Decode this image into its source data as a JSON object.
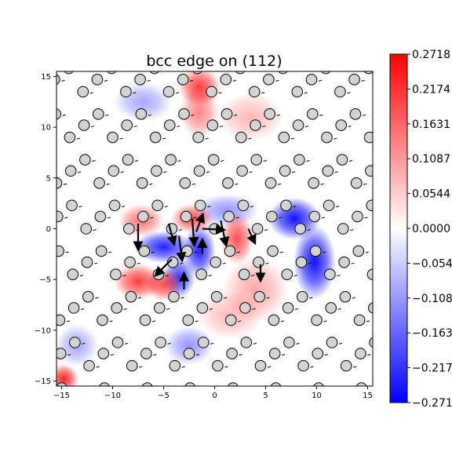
{
  "chart_data": {
    "type": "heatmap",
    "title": "bcc edge on (112)",
    "xlabel": "",
    "ylabel": "",
    "xlim": [
      -15.5,
      15.5
    ],
    "ylim": [
      -15.5,
      15.5
    ],
    "x_ticks": [
      -15,
      -10,
      -5,
      0,
      5,
      10,
      15
    ],
    "y_ticks": [
      -15,
      -10,
      -5,
      0,
      5,
      10,
      15
    ],
    "colormap": "bwr",
    "grid": false,
    "colorbar": {
      "min": -0.2718,
      "max": 0.2718,
      "tick_labels": [
        "0.2718",
        "0.2174",
        "0.1631",
        "0.1087",
        "0.0544",
        "0.0000",
        "-0.054",
        "-0.108",
        "-0.163",
        "-0.217",
        "-0.271"
      ],
      "tick_values": [
        0.2718,
        0.2174,
        0.1631,
        0.1087,
        0.0544,
        0.0,
        -0.0544,
        -0.1087,
        -0.1631,
        -0.2174,
        -0.2718
      ]
    },
    "atoms": {
      "lattice_a": [
        4.2,
        0
      ],
      "lattice_b": [
        1.3,
        4.5
      ],
      "basis": [
        [
          0,
          0
        ],
        [
          1.4,
          1.2
        ],
        [
          2.8,
          2.3
        ]
      ],
      "marker_color": "#d3d3d3"
    },
    "displacement_peaks": [
      {
        "x": 7.8,
        "y": 1.0,
        "value": -0.27,
        "sx": 1.6,
        "sy": 1.3
      },
      {
        "x": 9.8,
        "y": -3.3,
        "value": -0.27,
        "sx": 1.3,
        "sy": 2.3
      },
      {
        "x": -5.0,
        "y": -1.8,
        "value": -0.25,
        "sx": 1.8,
        "sy": 1.0
      },
      {
        "x": -1.5,
        "y": -2.2,
        "value": -0.25,
        "sx": 1.0,
        "sy": 1.6
      },
      {
        "x": -3.5,
        "y": -4.8,
        "value": -0.22,
        "sx": 1.0,
        "sy": 1.3
      },
      {
        "x": 1.2,
        "y": 1.8,
        "value": -0.12,
        "sx": 2.0,
        "sy": 1.0
      },
      {
        "x": -2.5,
        "y": -11.5,
        "value": -0.12,
        "sx": 1.5,
        "sy": 1.2
      },
      {
        "x": -13.5,
        "y": -11.5,
        "value": -0.1,
        "sx": 1.3,
        "sy": 1.3
      },
      {
        "x": -7.0,
        "y": 12.5,
        "value": -0.1,
        "sx": 1.8,
        "sy": 1.2
      },
      {
        "x": -1.5,
        "y": 14.0,
        "value": 0.22,
        "sx": 1.3,
        "sy": 1.2
      },
      {
        "x": -1.5,
        "y": 11.5,
        "value": 0.14,
        "sx": 1.2,
        "sy": 1.6
      },
      {
        "x": -7.5,
        "y": -5.2,
        "value": 0.22,
        "sx": 1.5,
        "sy": 1.1
      },
      {
        "x": -5.0,
        "y": -5.5,
        "value": 0.2,
        "sx": 1.1,
        "sy": 1.0
      },
      {
        "x": -7.2,
        "y": 0.8,
        "value": 0.16,
        "sx": 1.4,
        "sy": 1.0
      },
      {
        "x": -2.2,
        "y": 1.0,
        "value": 0.2,
        "sx": 1.3,
        "sy": 0.9
      },
      {
        "x": 2.2,
        "y": -1.0,
        "value": 0.2,
        "sx": 1.0,
        "sy": 1.6
      },
      {
        "x": 4.0,
        "y": -6.0,
        "value": 0.1,
        "sx": 2.0,
        "sy": 2.0
      },
      {
        "x": 1.5,
        "y": -8.5,
        "value": 0.08,
        "sx": 2.0,
        "sy": 1.5
      },
      {
        "x": -14.8,
        "y": -14.8,
        "value": 0.25,
        "sx": 0.9,
        "sy": 0.9
      },
      {
        "x": 3.5,
        "y": 11.0,
        "value": 0.08,
        "sx": 2.0,
        "sy": 1.5
      }
    ],
    "displacement_vectors": [
      {
        "x": -7.5,
        "y": 0.5,
        "u": 0.0,
        "v": -2.4
      },
      {
        "x": -4.5,
        "y": 0.5,
        "u": 0.5,
        "v": -1.9
      },
      {
        "x": -3.5,
        "y": -0.7,
        "u": 0.3,
        "v": -2.3
      },
      {
        "x": -2.2,
        "y": 1.0,
        "u": 0.2,
        "v": -2.5
      },
      {
        "x": -1.8,
        "y": -0.3,
        "u": 0.6,
        "v": 1.6
      },
      {
        "x": -1.2,
        "y": 0.0,
        "u": 2.0,
        "v": -0.1
      },
      {
        "x": 0.6,
        "y": 0.8,
        "u": 0.5,
        "v": -2.3
      },
      {
        "x": 3.3,
        "y": 0.0,
        "u": 0.6,
        "v": -1.3
      },
      {
        "x": -4.2,
        "y": -3.0,
        "u": -1.5,
        "v": -1.5
      },
      {
        "x": -3.0,
        "y": -6.0,
        "u": 0.0,
        "v": 1.5
      },
      {
        "x": -1.2,
        "y": -2.5,
        "u": 0.0,
        "v": 1.3
      },
      {
        "x": 4.5,
        "y": -3.5,
        "u": 0.0,
        "v": -1.5
      }
    ]
  }
}
